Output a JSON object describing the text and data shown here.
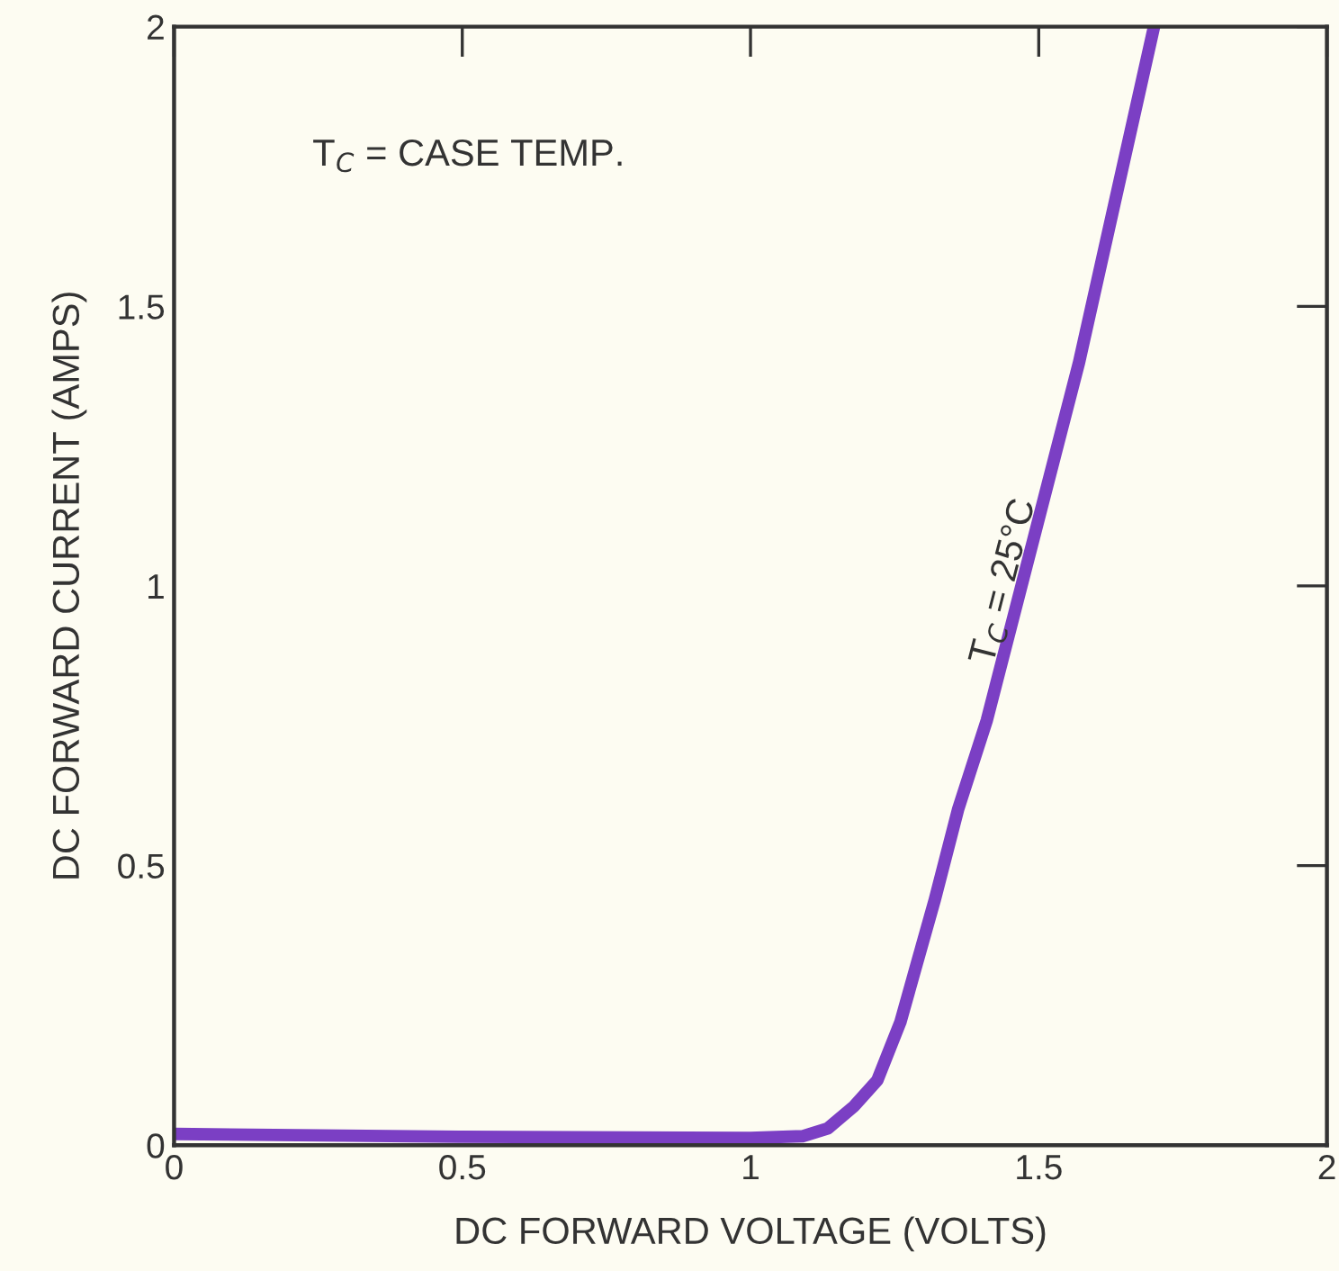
{
  "chart_data": {
    "type": "line",
    "xlabel": "DC FORWARD VOLTAGE (VOLTS)",
    "ylabel": "DC FORWARD CURRENT (AMPS)",
    "x": [
      0,
      0.5,
      1.0,
      1.09,
      1.134,
      1.18,
      1.22,
      1.26,
      1.29,
      1.32,
      1.36,
      1.41,
      1.57,
      1.7
    ],
    "series": [
      {
        "color": "#7b3fc4",
        "values": [
          0.02,
          0.015,
          0.013,
          0.016,
          0.03,
          0.07,
          0.116,
          0.22,
          0.33,
          0.44,
          0.6,
          0.76,
          1.4,
          2.0
        ]
      }
    ],
    "xlim": [
      0,
      2
    ],
    "ylim": [
      0,
      2
    ],
    "xticks": [
      0,
      0.5,
      1,
      1.5,
      2
    ],
    "yticks": [
      0,
      0.5,
      1,
      1.5,
      2
    ],
    "grid": false,
    "marker": "none",
    "line_style": "solid",
    "annotations": [
      "T$_{C}$ = CASE TEMP.",
      {
        "text": "T$_{C}$ = 25°C",
        "x": 1.47,
        "y": 1.0
      }
    ]
  }
}
